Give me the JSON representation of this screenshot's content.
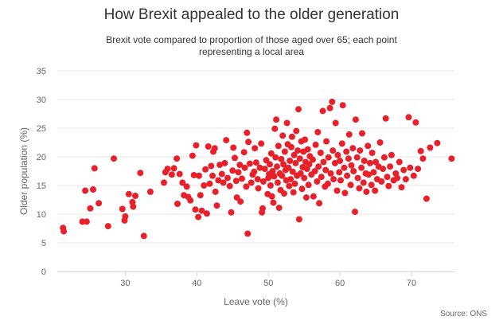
{
  "chart_data": {
    "type": "scatter",
    "title": "How Brexit appealed to the older generation",
    "subtitle": "Brexit vote compared to proportion of those aged over 65; each point representing a local area",
    "source": "Source: ONS",
    "xlabel": "Leave vote (%)",
    "ylabel": "Older population (%)",
    "xlim": [
      20.5,
      76
    ],
    "ylim": [
      0,
      35
    ],
    "xticks": [
      30,
      40,
      50,
      60,
      70
    ],
    "yticks": [
      0,
      5,
      10,
      15,
      20,
      25,
      30,
      35
    ],
    "grid": {
      "horizontal": true,
      "vertical": false
    },
    "point_color": "#e8202a",
    "points": [
      [
        21.3,
        7.6
      ],
      [
        21.4,
        7.0
      ],
      [
        24.0,
        8.7
      ],
      [
        24.4,
        14.1
      ],
      [
        24.6,
        8.7
      ],
      [
        25.1,
        11.0
      ],
      [
        25.5,
        14.3
      ],
      [
        25.7,
        18.0
      ],
      [
        26.3,
        11.9
      ],
      [
        27.6,
        7.9
      ],
      [
        28.4,
        19.7
      ],
      [
        29.6,
        10.9
      ],
      [
        29.9,
        8.9
      ],
      [
        30.0,
        9.6
      ],
      [
        30.5,
        13.5
      ],
      [
        31.0,
        12.1
      ],
      [
        31.1,
        11.3
      ],
      [
        31.4,
        13.2
      ],
      [
        32.1,
        17.2
      ],
      [
        32.6,
        6.2
      ],
      [
        33.5,
        13.9
      ],
      [
        35.4,
        15.5
      ],
      [
        35.6,
        17.3
      ],
      [
        35.9,
        17.9
      ],
      [
        36.5,
        16.9
      ],
      [
        36.8,
        18.0
      ],
      [
        37.2,
        19.7
      ],
      [
        37.3,
        11.8
      ],
      [
        37.6,
        17.0
      ],
      [
        38.0,
        15.5
      ],
      [
        38.2,
        13.3
      ],
      [
        38.6,
        14.8
      ],
      [
        38.8,
        13.0
      ],
      [
        39.1,
        12.4
      ],
      [
        39.4,
        20.2
      ],
      [
        39.6,
        16.8
      ],
      [
        39.8,
        10.8
      ],
      [
        39.9,
        22.0
      ],
      [
        40.2,
        9.5
      ],
      [
        40.3,
        16.7
      ],
      [
        40.5,
        13.3
      ],
      [
        40.7,
        10.6
      ],
      [
        41.0,
        15.0
      ],
      [
        41.2,
        17.8
      ],
      [
        41.4,
        10.1
      ],
      [
        41.6,
        21.8
      ],
      [
        41.8,
        15.3
      ],
      [
        42.0,
        18.4
      ],
      [
        42.2,
        16.7
      ],
      [
        42.3,
        20.9
      ],
      [
        42.5,
        21.5
      ],
      [
        42.6,
        13.9
      ],
      [
        42.8,
        11.5
      ],
      [
        43.0,
        15.9
      ],
      [
        43.2,
        18.6
      ],
      [
        43.5,
        17.0
      ],
      [
        43.7,
        15.5
      ],
      [
        43.9,
        18.9
      ],
      [
        44.1,
        22.9
      ],
      [
        44.3,
        16.3
      ],
      [
        44.6,
        14.9
      ],
      [
        44.8,
        10.3
      ],
      [
        45.0,
        17.6
      ],
      [
        45.1,
        21.6
      ],
      [
        45.3,
        19.8
      ],
      [
        45.5,
        15.8
      ],
      [
        45.6,
        12.9
      ],
      [
        45.8,
        17.3
      ],
      [
        46.0,
        18.6
      ],
      [
        46.1,
        12.2
      ],
      [
        46.3,
        16.2
      ],
      [
        46.6,
        20.8
      ],
      [
        46.7,
        18.1
      ],
      [
        46.9,
        14.8
      ],
      [
        47.0,
        24.2
      ],
      [
        47.1,
        6.6
      ],
      [
        47.2,
        22.6
      ],
      [
        47.4,
        18.8
      ],
      [
        47.6,
        15.5
      ],
      [
        47.8,
        16.9
      ],
      [
        48.0,
        17.4
      ],
      [
        48.1,
        21.5
      ],
      [
        48.3,
        19.0
      ],
      [
        48.5,
        16.1
      ],
      [
        48.6,
        14.5
      ],
      [
        48.8,
        18.1
      ],
      [
        49.0,
        22.3
      ],
      [
        49.1,
        10.3
      ],
      [
        49.2,
        11.0
      ],
      [
        49.3,
        15.7
      ],
      [
        49.5,
        17.9
      ],
      [
        49.7,
        19.4
      ],
      [
        49.9,
        13.5
      ],
      [
        50.0,
        16.3
      ],
      [
        50.1,
        17.0
      ],
      [
        50.2,
        18.7
      ],
      [
        50.3,
        15.0
      ],
      [
        50.4,
        20.6
      ],
      [
        50.5,
        13.1
      ],
      [
        50.6,
        17.5
      ],
      [
        50.7,
        12.0
      ],
      [
        50.8,
        16.6
      ],
      [
        50.9,
        24.9
      ],
      [
        51.0,
        19.9
      ],
      [
        51.1,
        26.5
      ],
      [
        51.2,
        18.3
      ],
      [
        51.3,
        15.5
      ],
      [
        51.4,
        21.9
      ],
      [
        51.5,
        11.1
      ],
      [
        51.6,
        17.1
      ],
      [
        51.7,
        14.2
      ],
      [
        51.8,
        19.6
      ],
      [
        51.9,
        16.7
      ],
      [
        52.0,
        23.7
      ],
      [
        52.1,
        18.7
      ],
      [
        52.2,
        13.6
      ],
      [
        52.3,
        20.9
      ],
      [
        52.4,
        17.7
      ],
      [
        52.5,
        15.9
      ],
      [
        52.6,
        25.9
      ],
      [
        52.7,
        22.2
      ],
      [
        52.8,
        18.1
      ],
      [
        52.9,
        14.9
      ],
      [
        53.0,
        19.3
      ],
      [
        53.1,
        16.1
      ],
      [
        53.2,
        21.7
      ],
      [
        53.3,
        23.5
      ],
      [
        53.4,
        17.4
      ],
      [
        53.5,
        13.8
      ],
      [
        53.6,
        20.3
      ],
      [
        53.7,
        15.3
      ],
      [
        53.8,
        18.9
      ],
      [
        53.9,
        24.5
      ],
      [
        54.0,
        16.7
      ],
      [
        54.1,
        21.1
      ],
      [
        54.2,
        28.3
      ],
      [
        54.3,
        9.1
      ],
      [
        54.4,
        19.7
      ],
      [
        54.5,
        17.1
      ],
      [
        54.6,
        22.7
      ],
      [
        54.7,
        14.4
      ],
      [
        54.8,
        18.2
      ],
      [
        54.9,
        20.9
      ],
      [
        55.0,
        16.3
      ],
      [
        55.1,
        23.0
      ],
      [
        55.2,
        19.1
      ],
      [
        55.3,
        12.9
      ],
      [
        55.4,
        17.9
      ],
      [
        55.5,
        21.3
      ],
      [
        55.6,
        15.1
      ],
      [
        55.7,
        18.7
      ],
      [
        55.8,
        20.1
      ],
      [
        56.0,
        16.9
      ],
      [
        56.2,
        19.5
      ],
      [
        56.3,
        13.1
      ],
      [
        56.5,
        17.5
      ],
      [
        56.6,
        22.1
      ],
      [
        56.8,
        15.7
      ],
      [
        56.9,
        24.3
      ],
      [
        57.0,
        18.3
      ],
      [
        57.1,
        11.9
      ],
      [
        57.3,
        20.7
      ],
      [
        57.4,
        16.5
      ],
      [
        57.6,
        28.0
      ],
      [
        57.7,
        19.1
      ],
      [
        57.9,
        14.8
      ],
      [
        58.0,
        17.7
      ],
      [
        58.1,
        22.7
      ],
      [
        58.3,
        15.3
      ],
      [
        58.4,
        19.9
      ],
      [
        58.6,
        28.5
      ],
      [
        58.7,
        17.1
      ],
      [
        58.9,
        29.6
      ],
      [
        59.0,
        21.1
      ],
      [
        59.1,
        16.1
      ],
      [
        59.3,
        18.9
      ],
      [
        59.4,
        25.9
      ],
      [
        59.6,
        14.1
      ],
      [
        59.7,
        20.3
      ],
      [
        59.9,
        17.3
      ],
      [
        60.0,
        19.3
      ],
      [
        60.1,
        15.9
      ],
      [
        60.3,
        22.3
      ],
      [
        60.4,
        29.0
      ],
      [
        60.6,
        18.1
      ],
      [
        60.7,
        13.7
      ],
      [
        60.9,
        20.9
      ],
      [
        61.0,
        16.7
      ],
      [
        61.2,
        19.7
      ],
      [
        61.3,
        23.9
      ],
      [
        61.5,
        15.1
      ],
      [
        61.6,
        18.5
      ],
      [
        61.8,
        21.5
      ],
      [
        61.9,
        17.5
      ],
      [
        62.1,
        10.4
      ],
      [
        62.2,
        26.5
      ],
      [
        62.4,
        19.9
      ],
      [
        62.5,
        16.3
      ],
      [
        62.7,
        14.5
      ],
      [
        62.8,
        21.1
      ],
      [
        63.0,
        18.1
      ],
      [
        63.1,
        24.1
      ],
      [
        63.3,
        15.5
      ],
      [
        63.4,
        19.3
      ],
      [
        63.6,
        17.1
      ],
      [
        63.7,
        13.9
      ],
      [
        63.9,
        21.9
      ],
      [
        64.0,
        16.9
      ],
      [
        64.2,
        18.9
      ],
      [
        64.4,
        15.1
      ],
      [
        64.5,
        20.7
      ],
      [
        64.7,
        17.3
      ],
      [
        64.9,
        14.1
      ],
      [
        65.0,
        19.1
      ],
      [
        65.2,
        16.1
      ],
      [
        65.4,
        18.3
      ],
      [
        65.6,
        22.5
      ],
      [
        65.8,
        15.7
      ],
      [
        66.0,
        17.9
      ],
      [
        66.2,
        19.9
      ],
      [
        66.4,
        26.7
      ],
      [
        66.6,
        16.5
      ],
      [
        66.8,
        14.9
      ],
      [
        67.0,
        18.3
      ],
      [
        67.2,
        20.3
      ],
      [
        67.5,
        15.9
      ],
      [
        67.8,
        17.1
      ],
      [
        68.0,
        16.3
      ],
      [
        68.3,
        19.1
      ],
      [
        68.6,
        14.7
      ],
      [
        68.9,
        17.7
      ],
      [
        69.2,
        16.1
      ],
      [
        69.6,
        26.9
      ],
      [
        69.8,
        18.1
      ],
      [
        70.3,
        16.7
      ],
      [
        70.6,
        26.0
      ],
      [
        70.9,
        17.9
      ],
      [
        71.3,
        21.0
      ],
      [
        71.6,
        19.7
      ],
      [
        72.1,
        12.7
      ],
      [
        72.6,
        21.6
      ],
      [
        73.6,
        22.4
      ],
      [
        75.6,
        19.7
      ]
    ]
  }
}
